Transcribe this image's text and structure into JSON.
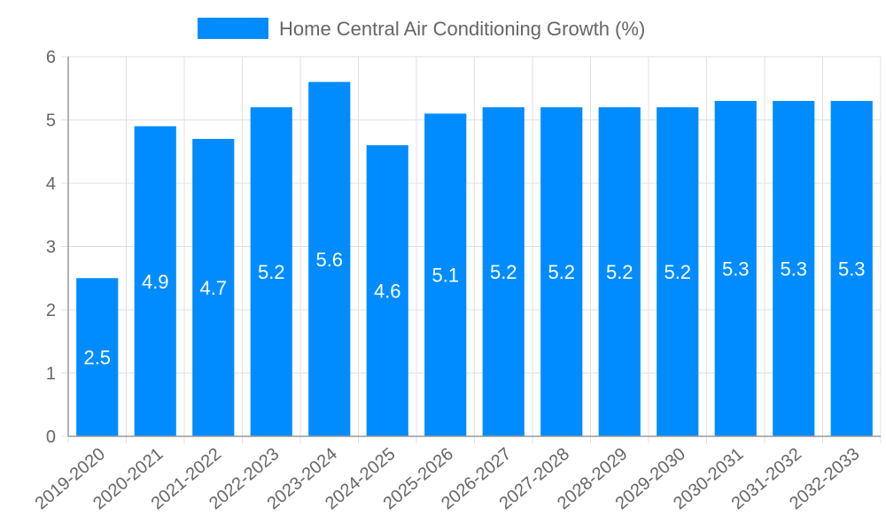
{
  "chart_data": {
    "type": "bar",
    "title": "",
    "legend": [
      {
        "label": "Home Central Air Conditioning Growth (%)",
        "color": "#008cff"
      }
    ],
    "legend_position": "top",
    "categories": [
      "2019-2020",
      "2020-2021",
      "2021-2022",
      "2022-2023",
      "2023-2024",
      "2024-2025",
      "2025-2026",
      "2026-2027",
      "2027-2028",
      "2028-2029",
      "2029-2030",
      "2030-2031",
      "2031-2032",
      "2032-2033"
    ],
    "series": [
      {
        "name": "Home Central Air Conditioning Growth (%)",
        "values": [
          2.5,
          4.9,
          4.7,
          5.2,
          5.6,
          4.6,
          5.1,
          5.2,
          5.2,
          5.2,
          5.2,
          5.3,
          5.3,
          5.3
        ]
      }
    ],
    "xlabel": "",
    "ylabel": "",
    "ylim": [
      0,
      6
    ],
    "yticks": [
      0,
      1,
      2,
      3,
      4,
      5,
      6
    ],
    "grid": true,
    "data_labels": true
  },
  "colors": {
    "bar": "#008cff",
    "grid": "#e0e0e0",
    "axis": "#999999",
    "text": "#666666"
  }
}
